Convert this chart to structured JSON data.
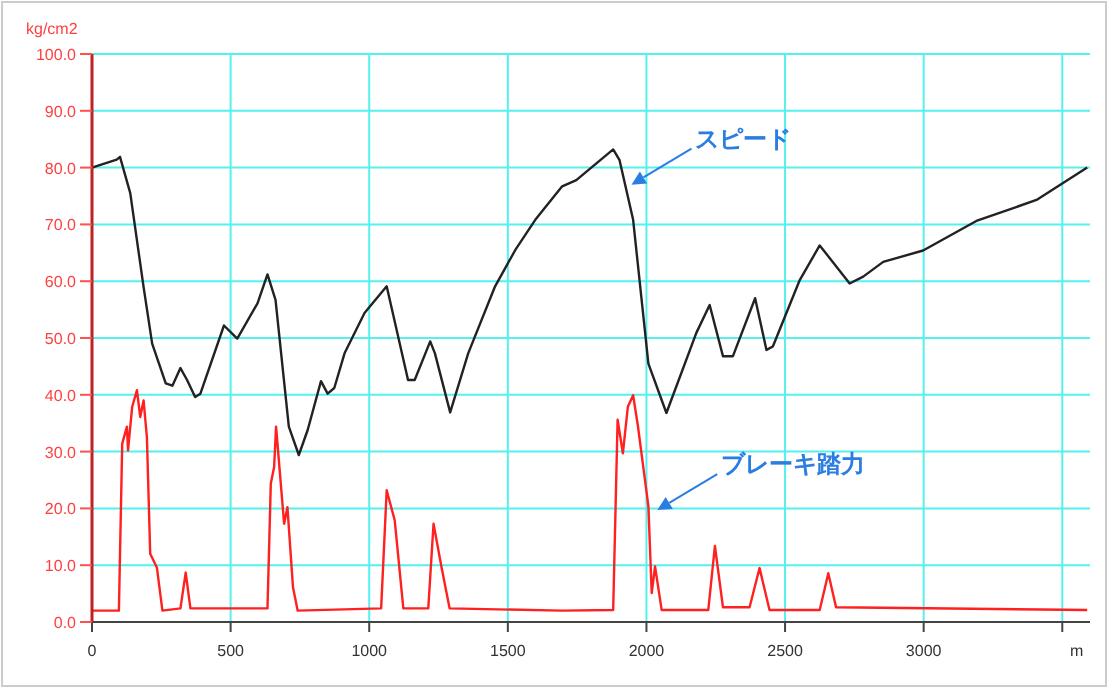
{
  "chart_data": {
    "type": "line",
    "xlabel": "m",
    "ylabel": "kg/cm2",
    "xlim": [
      0,
      3600
    ],
    "ylim": [
      0,
      100
    ],
    "xticks": [
      0,
      500,
      1000,
      1500,
      2000,
      2500,
      3000,
      {
        "value": 3500,
        "label": null
      }
    ],
    "yticks": [
      {
        "value": 0,
        "label": "0.0"
      },
      {
        "value": 10,
        "label": "10.0"
      },
      {
        "value": 20,
        "label": "20.0"
      },
      {
        "value": 30,
        "label": "30.0"
      },
      {
        "value": 40,
        "label": "40.0"
      },
      {
        "value": 50,
        "label": "50.0"
      },
      {
        "value": 60,
        "label": "60.0"
      },
      {
        "value": 70,
        "label": "70.0"
      },
      {
        "value": 80,
        "label": "80.0"
      },
      {
        "value": 90,
        "label": "90.0"
      },
      {
        "value": 100,
        "label": "100.0"
      }
    ],
    "grid": true,
    "marker": "none",
    "line_style": "solid",
    "series": [
      {
        "color": "#222222",
        "x": [
          0,
          89,
          101,
          138,
          186,
          217,
          266,
          290,
          319,
          343,
          372,
          391,
          476,
          524,
          597,
          633,
          662,
          710,
          746,
          778,
          826,
          850,
          874,
          911,
          983,
          1063,
          1140,
          1164,
          1220,
          1237,
          1292,
          1357,
          1454,
          1527,
          1599,
          1696,
          1747,
          1880,
          1903,
          1952,
          2007,
          2072,
          2180,
          2228,
          2276,
          2312,
          2392,
          2433,
          2456,
          2553,
          2625,
          2733,
          2782,
          2854,
          2998,
          3190,
          3407,
          3590
        ],
        "values": [
          80,
          81.4,
          81.9,
          75.5,
          59,
          49,
          42,
          41.6,
          44.7,
          42.6,
          39.6,
          40.2,
          52.2,
          49.9,
          56.1,
          61.2,
          56.7,
          34.4,
          29.4,
          33.8,
          42.4,
          40.2,
          41.2,
          47.3,
          54.4,
          59.1,
          42.6,
          42.6,
          49.4,
          47.3,
          36.9,
          47.3,
          59.1,
          65.5,
          70.8,
          76.7,
          77.8,
          83.2,
          81.3,
          70.8,
          45.5,
          36.8,
          50.9,
          55.8,
          46.8,
          46.8,
          57,
          47.9,
          48.5,
          60.2,
          66.3,
          59.6,
          60.8,
          63.4,
          65.4,
          70.6,
          74.3,
          80
        ]
      },
      {
        "color": "#ff2020",
        "x": [
          0,
          97,
          109,
          126,
          130,
          145,
          162,
          174,
          186,
          198,
          210,
          234,
          254,
          319,
          338,
          355,
          633,
          645,
          657,
          664,
          676,
          693,
          705,
          725,
          742,
          1043,
          1063,
          1092,
          1123,
          1213,
          1232,
          1261,
          1290,
          1696,
          1880,
          1896,
          1915,
          1933,
          1952,
          1969,
          1988,
          2007,
          2019,
          2031,
          2055,
          2223,
          2247,
          2276,
          2372,
          2408,
          2444,
          2625,
          2656,
          2684,
          3590
        ],
        "values": [
          2,
          2,
          31.4,
          34.4,
          30.2,
          37.9,
          40.8,
          36.1,
          39,
          32.6,
          12,
          9.6,
          2,
          2.4,
          8.7,
          2.4,
          2.4,
          24.4,
          27.3,
          34.4,
          27.3,
          17.3,
          20.2,
          6.1,
          2,
          2.4,
          23.2,
          17.9,
          2.4,
          2.4,
          17.3,
          9.6,
          2.4,
          2,
          2.1,
          35.6,
          29.7,
          37.9,
          39.9,
          34.6,
          27.5,
          20.4,
          5.1,
          9.8,
          2.1,
          2.1,
          13.4,
          2.6,
          2.6,
          9.5,
          2.1,
          2.1,
          8.6,
          2.6,
          2.1
        ]
      }
    ],
    "annotations": [
      {
        "text": "スピード",
        "x": 1946,
        "y": 77
      },
      {
        "text": "ブレーキ踏力",
        "x": 2039,
        "y": 19.7
      }
    ]
  }
}
